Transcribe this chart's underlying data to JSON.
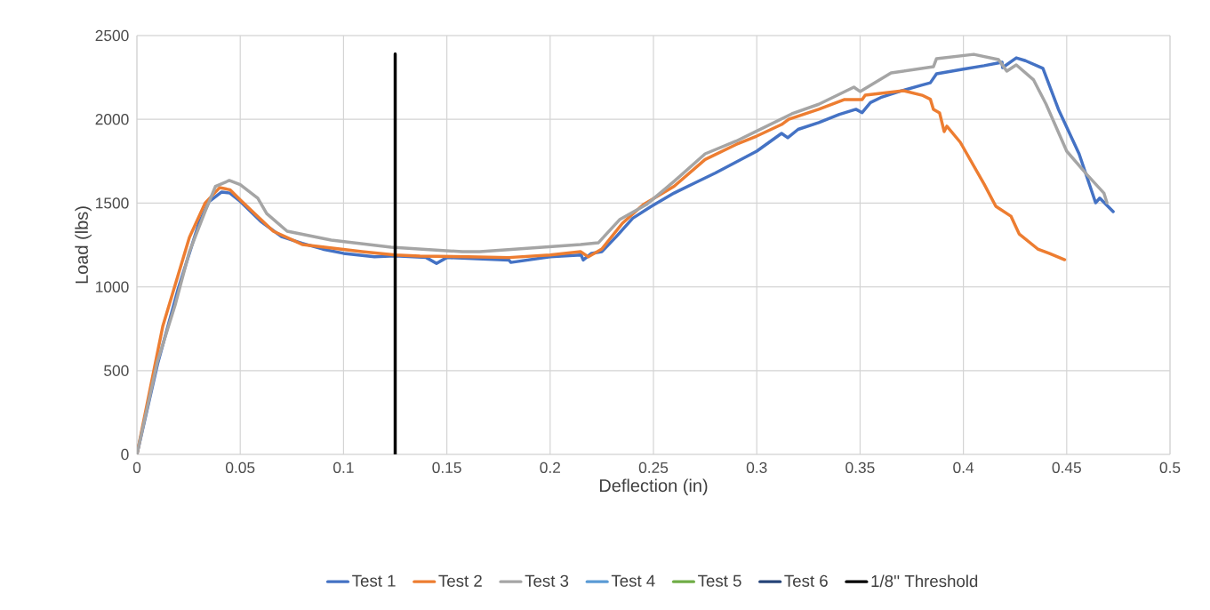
{
  "chart_data": {
    "type": "line",
    "xlabel": "Deflection (in)",
    "ylabel": "Load (lbs)",
    "xlim": [
      0,
      0.5
    ],
    "ylim": [
      0,
      2500
    ],
    "xticks": [
      0,
      0.05,
      0.1,
      0.15,
      0.2,
      0.25,
      0.3,
      0.35,
      0.4,
      0.45,
      0.5
    ],
    "yticks": [
      0,
      500,
      1000,
      1500,
      2000,
      2500
    ],
    "grid": true,
    "legend": "bottom",
    "series": [
      {
        "name": "Test 1",
        "color": "#4472c4",
        "x": [
          0,
          0.01,
          0.02,
          0.03,
          0.035,
          0.041,
          0.045,
          0.05,
          0.06,
          0.07,
          0.08,
          0.09,
          0.1,
          0.115,
          0.125,
          0.14,
          0.145,
          0.15,
          0.18,
          0.181,
          0.2,
          0.215,
          0.216,
          0.22,
          0.225,
          0.232,
          0.24,
          0.249,
          0.26,
          0.27,
          0.28,
          0.29,
          0.3,
          0.312,
          0.315,
          0.32,
          0.33,
          0.34,
          0.348,
          0.351,
          0.355,
          0.36,
          0.37,
          0.38,
          0.384,
          0.387,
          0.4,
          0.41,
          0.4187,
          0.419,
          0.4256,
          0.43,
          0.4385,
          0.446,
          0.456,
          0.464,
          0.466,
          0.4725
        ],
        "values": [
          0,
          540,
          990,
          1380,
          1510,
          1566,
          1560,
          1510,
          1390,
          1300,
          1260,
          1225,
          1200,
          1180,
          1185,
          1175,
          1140,
          1175,
          1160,
          1146,
          1180,
          1190,
          1160,
          1200,
          1210,
          1300,
          1410,
          1481,
          1560,
          1620,
          1680,
          1745,
          1810,
          1916,
          1890,
          1940,
          1980,
          2030,
          2060,
          2040,
          2100,
          2130,
          2170,
          2205,
          2218,
          2272,
          2300,
          2320,
          2341,
          2309,
          2367,
          2350,
          2304,
          2060,
          1794,
          1502,
          1530,
          1449
        ]
      },
      {
        "name": "Test 2",
        "color": "#ed7d31",
        "x": [
          0,
          0.0125,
          0.0254,
          0.033,
          0.04,
          0.045,
          0.051,
          0.066,
          0.08,
          0.109,
          0.125,
          0.137,
          0.16,
          0.18,
          0.2,
          0.2147,
          0.2185,
          0.225,
          0.235,
          0.245,
          0.26,
          0.275,
          0.29,
          0.3,
          0.312,
          0.3155,
          0.33,
          0.3425,
          0.351,
          0.3525,
          0.371,
          0.38,
          0.384,
          0.3855,
          0.3885,
          0.3907,
          0.392,
          0.3985,
          0.41,
          0.4157,
          0.423,
          0.427,
          0.436,
          0.4415,
          0.449
        ],
        "values": [
          0,
          764,
          1295,
          1500,
          1592,
          1580,
          1507,
          1332,
          1253,
          1210,
          1190,
          1184,
          1180,
          1175,
          1190,
          1210,
          1179,
          1226,
          1380,
          1490,
          1600,
          1760,
          1850,
          1900,
          1969,
          2000,
          2060,
          2118,
          2118,
          2144,
          2171,
          2144,
          2120,
          2060,
          2038,
          1927,
          1959,
          1863,
          1614,
          1481,
          1422,
          1316,
          1226,
          1200,
          1162
        ]
      },
      {
        "name": "Test 3",
        "color": "#a5a5a5",
        "x": [
          0,
          0.0099,
          0.0185,
          0.0254,
          0.033,
          0.038,
          0.0447,
          0.05,
          0.0585,
          0.0628,
          0.0727,
          0.094,
          0.123,
          0.1575,
          0.166,
          0.2147,
          0.2233,
          0.2336,
          0.2466,
          0.26,
          0.275,
          0.29,
          0.3,
          0.317,
          0.33,
          0.347,
          0.35,
          0.365,
          0.3855,
          0.387,
          0.405,
          0.417,
          0.421,
          0.4256,
          0.434,
          0.44,
          0.45,
          0.46,
          0.468,
          0.4695
        ],
        "values": [
          0,
          552,
          892,
          1210,
          1450,
          1600,
          1635,
          1610,
          1529,
          1438,
          1332,
          1279,
          1237,
          1210,
          1210,
          1253,
          1263,
          1401,
          1491,
          1630,
          1794,
          1870,
          1930,
          2033,
          2090,
          2192,
          2166,
          2277,
          2314,
          2362,
          2388,
          2357,
          2288,
          2325,
          2235,
          2091,
          1810,
          1667,
          1560,
          1502
        ]
      },
      {
        "name": "Test 4",
        "color": "#5b9bd5"
      },
      {
        "name": "Test 5",
        "color": "#70ad47"
      },
      {
        "name": "Test 6",
        "color": "#264478"
      },
      {
        "name": "1/8'' Threshold",
        "color": "#000000",
        "x": [
          0.125,
          0.125
        ],
        "values": [
          0,
          2390
        ]
      }
    ]
  }
}
